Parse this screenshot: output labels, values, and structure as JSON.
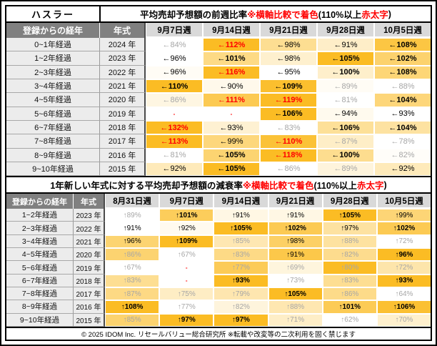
{
  "footer": "© 2025 IDOM Inc. リセールバリュー総合研究所 ※転載や改変等の二次利用を固く禁じます",
  "colors": {
    "heat_max": "#FBBC24",
    "heat_min": "#FFFFFF",
    "red_text": "#FF0000",
    "gray_text": "#A6A6A6",
    "header_dark_bg": "#808080",
    "header_light_bg": "#D9D9D9",
    "label_bg": "#ECECEC"
  },
  "chart_data": [
    {
      "type": "heatmap",
      "model": "ハスラー",
      "title_runs": [
        {
          "t": "平均売却予想額の前週比率 ",
          "red": false
        },
        {
          "t": "※横軸比較で着色",
          "red": true
        },
        {
          "t": "(110%以上 ",
          "red": false
        },
        {
          "t": "赤太字",
          "red": true
        },
        {
          "t": ")",
          "red": false
        }
      ],
      "corner_headers": [
        "登録からの経年",
        "年式"
      ],
      "week_headers": [
        "9月7日週",
        "9月14日週",
        "9月21日週",
        "9月28日週",
        "10月5日週"
      ],
      "arrow": "←",
      "value_suffix": "%",
      "legend_note": "横軸比較で着色、110%以上は赤太字",
      "rows": [
        {
          "age": "0~1年経過",
          "year": "2024 年",
          "cells": [
            {
              "v": 84,
              "s": "gray"
            },
            {
              "v": 112,
              "s": "red"
            },
            {
              "v": 98,
              "s": "norm"
            },
            {
              "v": 91,
              "s": "norm"
            },
            {
              "v": 108,
              "s": "bold"
            }
          ]
        },
        {
          "age": "1~2年経過",
          "year": "2023 年",
          "cells": [
            {
              "v": 96,
              "s": "norm"
            },
            {
              "v": 101,
              "s": "bold"
            },
            {
              "v": 98,
              "s": "norm"
            },
            {
              "v": 105,
              "s": "bold"
            },
            {
              "v": 102,
              "s": "bold"
            }
          ]
        },
        {
          "age": "2~3年経過",
          "year": "2022 年",
          "cells": [
            {
              "v": 96,
              "s": "norm"
            },
            {
              "v": 116,
              "s": "red"
            },
            {
              "v": 95,
              "s": "norm"
            },
            {
              "v": 100,
              "s": "bold"
            },
            {
              "v": 108,
              "s": "bold"
            }
          ]
        },
        {
          "age": "3~4年経過",
          "year": "2021 年",
          "cells": [
            {
              "v": 110,
              "s": "bold"
            },
            {
              "v": 90,
              "s": "norm"
            },
            {
              "v": 109,
              "s": "bold"
            },
            {
              "v": 89,
              "s": "gray"
            },
            {
              "v": 88,
              "s": "gray"
            }
          ]
        },
        {
          "age": "4~5年経過",
          "year": "2020 年",
          "cells": [
            {
              "v": 86,
              "s": "gray"
            },
            {
              "v": 111,
              "s": "red"
            },
            {
              "v": 119,
              "s": "red"
            },
            {
              "v": 81,
              "s": "gray"
            },
            {
              "v": 104,
              "s": "bold"
            }
          ]
        },
        {
          "age": "5~6年経過",
          "year": "2019 年",
          "cells": [
            {
              "v": null,
              "s": "dash"
            },
            {
              "v": null,
              "s": "dash"
            },
            {
              "v": 106,
              "s": "bold"
            },
            {
              "v": 94,
              "s": "norm"
            },
            {
              "v": 93,
              "s": "norm"
            }
          ]
        },
        {
          "age": "6~7年経過",
          "year": "2018 年",
          "cells": [
            {
              "v": 132,
              "s": "red"
            },
            {
              "v": 93,
              "s": "norm"
            },
            {
              "v": 83,
              "s": "gray"
            },
            {
              "v": 106,
              "s": "bold"
            },
            {
              "v": 104,
              "s": "bold"
            }
          ]
        },
        {
          "age": "7~8年経過",
          "year": "2017 年",
          "cells": [
            {
              "v": 113,
              "s": "red"
            },
            {
              "v": 99,
              "s": "norm"
            },
            {
              "v": 110,
              "s": "red"
            },
            {
              "v": 87,
              "s": "gray"
            },
            {
              "v": 78,
              "s": "gray"
            }
          ]
        },
        {
          "age": "8~9年経過",
          "year": "2016 年",
          "cells": [
            {
              "v": 81,
              "s": "gray"
            },
            {
              "v": 105,
              "s": "bold"
            },
            {
              "v": 118,
              "s": "red"
            },
            {
              "v": 100,
              "s": "bold"
            },
            {
              "v": 82,
              "s": "gray"
            }
          ]
        },
        {
          "age": "9~10年経過",
          "year": "2015 年",
          "cells": [
            {
              "v": 92,
              "s": "norm"
            },
            {
              "v": 105,
              "s": "bold"
            },
            {
              "v": 86,
              "s": "gray"
            },
            {
              "v": 89,
              "s": "gray"
            },
            {
              "v": 92,
              "s": "norm"
            }
          ]
        }
      ]
    },
    {
      "type": "heatmap",
      "title_runs": [
        {
          "t": "1年新しい年式に対する平均売却予想額の減衰率 ",
          "red": false
        },
        {
          "t": "※横軸比較で着色",
          "red": true
        },
        {
          "t": "(110%以上 ",
          "red": false
        },
        {
          "t": "赤太字",
          "red": true
        },
        {
          "t": ")",
          "red": false
        }
      ],
      "corner_headers": [
        "登録からの経年",
        "年式"
      ],
      "week_headers": [
        "8月31日週",
        "9月7日週",
        "9月14日週",
        "9月21日週",
        "9月28日週",
        "10月5日週"
      ],
      "arrow": "↑",
      "value_suffix": "%",
      "legend_note": "横軸比較で着色、110%以上は赤太字",
      "rows": [
        {
          "age": "1~2年経過",
          "year": "2023 年",
          "cells": [
            {
              "v": 89,
              "s": "gray"
            },
            {
              "v": 101,
              "s": "bold"
            },
            {
              "v": 91,
              "s": "norm"
            },
            {
              "v": 91,
              "s": "norm"
            },
            {
              "v": 105,
              "s": "bold"
            },
            {
              "v": 99,
              "s": "norm"
            }
          ]
        },
        {
          "age": "2~3年経過",
          "year": "2022 年",
          "cells": [
            {
              "v": 91,
              "s": "norm"
            },
            {
              "v": 92,
              "s": "norm"
            },
            {
              "v": 105,
              "s": "bold"
            },
            {
              "v": 102,
              "s": "bold"
            },
            {
              "v": 97,
              "s": "norm"
            },
            {
              "v": 102,
              "s": "bold"
            }
          ]
        },
        {
          "age": "3~4年経過",
          "year": "2021 年",
          "cells": [
            {
              "v": 96,
              "s": "norm"
            },
            {
              "v": 109,
              "s": "bold"
            },
            {
              "v": 85,
              "s": "gray"
            },
            {
              "v": 98,
              "s": "norm"
            },
            {
              "v": 88,
              "s": "gray"
            },
            {
              "v": 72,
              "s": "gray"
            }
          ]
        },
        {
          "age": "4~5年経過",
          "year": "2020 年",
          "cells": [
            {
              "v": 86,
              "s": "gray"
            },
            {
              "v": 67,
              "s": "gray"
            },
            {
              "v": 83,
              "s": "gray"
            },
            {
              "v": 91,
              "s": "norm"
            },
            {
              "v": 82,
              "s": "gray"
            },
            {
              "v": 96,
              "s": "bold"
            }
          ]
        },
        {
          "age": "5~6年経過",
          "year": "2019 年",
          "cells": [
            {
              "v": 67,
              "s": "gray"
            },
            {
              "v": null,
              "s": "dash"
            },
            {
              "v": 77,
              "s": "gray"
            },
            {
              "v": 69,
              "s": "gray"
            },
            {
              "v": 80,
              "s": "gray"
            },
            {
              "v": 72,
              "s": "gray"
            }
          ]
        },
        {
          "age": "6~7年経過",
          "year": "2018 年",
          "cells": [
            {
              "v": 83,
              "s": "gray"
            },
            {
              "v": null,
              "s": "dash"
            },
            {
              "v": 93,
              "s": "bold"
            },
            {
              "v": 73,
              "s": "gray"
            },
            {
              "v": 83,
              "s": "gray"
            },
            {
              "v": 93,
              "s": "bold"
            }
          ]
        },
        {
          "age": "7~8年経過",
          "year": "2017 年",
          "cells": [
            {
              "v": 87,
              "s": "gray"
            },
            {
              "v": 75,
              "s": "gray"
            },
            {
              "v": 79,
              "s": "gray"
            },
            {
              "v": 105,
              "s": "bold"
            },
            {
              "v": 86,
              "s": "gray"
            },
            {
              "v": 64,
              "s": "gray"
            }
          ]
        },
        {
          "age": "8~9年経過",
          "year": "2016 年",
          "cells": [
            {
              "v": 108,
              "s": "bold"
            },
            {
              "v": 77,
              "s": "gray"
            },
            {
              "v": 82,
              "s": "gray"
            },
            {
              "v": 88,
              "s": "gray"
            },
            {
              "v": 101,
              "s": "bold"
            },
            {
              "v": 106,
              "s": "bold"
            }
          ]
        },
        {
          "age": "9~10年経過",
          "year": "2015 年",
          "cells": [
            {
              "v": 85,
              "s": "gray"
            },
            {
              "v": 97,
              "s": "bold"
            },
            {
              "v": 97,
              "s": "bold"
            },
            {
              "v": 71,
              "s": "gray"
            },
            {
              "v": 62,
              "s": "gray"
            },
            {
              "v": 70,
              "s": "gray"
            }
          ]
        }
      ]
    }
  ]
}
